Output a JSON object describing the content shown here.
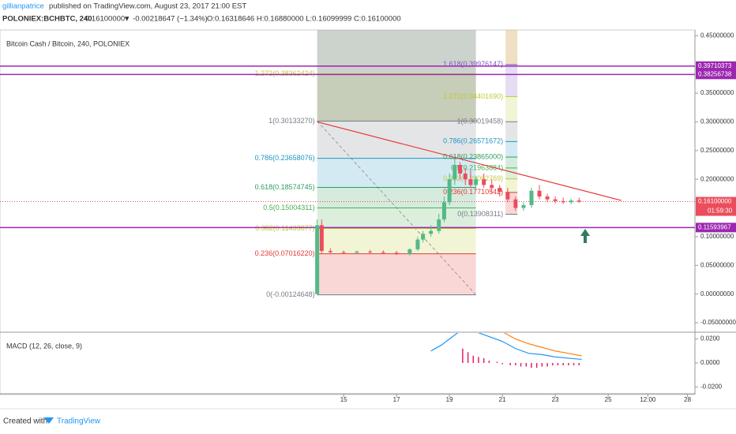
{
  "header": {
    "user": "gillianpatrice",
    "published": "published on TradingView.com, August 23, 2017 21:00 EST",
    "symbol": "POLONIEX:BCHBTC, 240",
    "last": "0.16100000",
    "change": "▼ -0.00218647 (−1.34%)",
    "ohlc": "O:0.16318646 H:0.16880000 L:0.16099999 C:0.16100000"
  },
  "chart_data": [
    {
      "type": "candlestick",
      "title": "Bitcoin Cash / Bitcoin, 240, POLONIEX",
      "up_color": "#53b987",
      "down_color": "#eb4d5c",
      "x": [
        14.0,
        14.17,
        14.5,
        15.0,
        15.5,
        16.0,
        16.5,
        17.0,
        17.5,
        17.8,
        18.0,
        18.3,
        18.6,
        18.8,
        19.0,
        19.2,
        19.4,
        19.6,
        19.8,
        20.0,
        20.3,
        20.6,
        20.9,
        21.2,
        21.5,
        21.8,
        22.1,
        22.4,
        22.7,
        23.0,
        23.3,
        23.6,
        23.9
      ],
      "open": [
        0.0,
        0.12,
        0.075,
        0.073,
        0.072,
        0.074,
        0.073,
        0.072,
        0.07,
        0.078,
        0.095,
        0.105,
        0.11,
        0.13,
        0.16,
        0.2,
        0.225,
        0.21,
        0.2,
        0.19,
        0.2,
        0.19,
        0.185,
        0.178,
        0.165,
        0.15,
        0.155,
        0.18,
        0.17,
        0.165,
        0.162,
        0.16,
        0.163
      ],
      "high": [
        0.13,
        0.13,
        0.08,
        0.076,
        0.076,
        0.077,
        0.076,
        0.075,
        0.08,
        0.1,
        0.11,
        0.12,
        0.14,
        0.17,
        0.21,
        0.235,
        0.23,
        0.22,
        0.215,
        0.205,
        0.21,
        0.2,
        0.19,
        0.185,
        0.17,
        0.16,
        0.185,
        0.19,
        0.175,
        0.17,
        0.168,
        0.166,
        0.168
      ],
      "low": [
        -0.001,
        0.07,
        0.07,
        0.07,
        0.07,
        0.071,
        0.07,
        0.068,
        0.067,
        0.075,
        0.09,
        0.1,
        0.105,
        0.125,
        0.155,
        0.19,
        0.2,
        0.19,
        0.185,
        0.18,
        0.185,
        0.175,
        0.17,
        0.16,
        0.145,
        0.145,
        0.15,
        0.165,
        0.16,
        0.158,
        0.157,
        0.156,
        0.159
      ],
      "close": [
        0.12,
        0.075,
        0.073,
        0.072,
        0.074,
        0.073,
        0.072,
        0.07,
        0.078,
        0.095,
        0.105,
        0.11,
        0.13,
        0.16,
        0.2,
        0.225,
        0.21,
        0.2,
        0.19,
        0.2,
        0.19,
        0.185,
        0.178,
        0.165,
        0.15,
        0.155,
        0.18,
        0.17,
        0.165,
        0.162,
        0.16,
        0.163,
        0.161
      ],
      "xlim": [
        2.01,
        28.28
      ],
      "xticks": [
        15,
        17,
        19,
        21,
        23,
        25,
        {
          "value": 26.5,
          "label": "12:00"
        },
        28
      ],
      "ylim": [
        -0.065,
        0.46
      ],
      "yticks": [
        {
          "value": 0.45,
          "label": "0.45000000"
        },
        {
          "value": 0.35,
          "label": "0.35000000"
        },
        {
          "value": 0.3,
          "label": "0.30000000"
        },
        {
          "value": 0.25,
          "label": "0.25000000"
        },
        {
          "value": 0.2,
          "label": "0.20000000"
        },
        {
          "value": 0.1,
          "label": "0.10000000"
        },
        {
          "value": 0.05,
          "label": "0.05000000"
        },
        {
          "value": 0,
          "label": "0.00000000"
        },
        {
          "value": -0.05,
          "label": "-0.05000000"
        }
      ],
      "horizontal_lines": [
        {
          "value": 0.39710373,
          "label": "0.39710373"
        },
        {
          "value": 0.38256738,
          "label": "0.38256738"
        },
        {
          "value": 0.11593967,
          "label": "0.11593967"
        }
      ],
      "last_price": {
        "value": 0.161,
        "label": "0.16100000",
        "countdown": "01:59:30"
      },
      "trend_line": {
        "x": [
          14.0,
          25.5
        ],
        "y": [
          0.3,
          0.163
        ]
      },
      "fibs": [
        {
          "x_range": [
            14.0,
            20.0
          ],
          "levels": [
            {
              "value": -0.00124648,
              "label": "0(-0.00124648)",
              "color": "#787b86"
            },
            {
              "value": 0.0701622,
              "label": "0.236(0.07016220)",
              "color": "#e53935"
            },
            {
              "value": 0.11433877,
              "label": "0.382(0.11433877)",
              "color": "#c0ca33"
            },
            {
              "value": 0.15004311,
              "label": "0.5(0.15004311)",
              "color": "#4caf50"
            },
            {
              "value": 0.18574745,
              "label": "0.618(0.18574745)",
              "color": "#2e9d5b"
            },
            {
              "value": 0.23658076,
              "label": "0.786(0.23658076)",
              "color": "#2196c3"
            },
            {
              "value": 0.3013327,
              "label": "1(0.30133270)",
              "color": "#787b86"
            },
            {
              "value": 0.38362424,
              "label": "1.272(0.38362424)",
              "color": "#c0ca33"
            }
          ]
        },
        {
          "x_range": [
            21.12,
            21.57
          ],
          "levels": [
            {
              "value": 0.13908311,
              "label": "0(0.13908311)",
              "color": "#787b86"
            },
            {
              "value": 0.17710542,
              "label": "0.236(0.17710542)",
              "color": "#e53935"
            },
            {
              "value": 0.20062769,
              "label": "0.382(0.20062769)",
              "color": "#c0ca33"
            },
            {
              "value": 0.21963884,
              "label": "0.5(0.21963884)",
              "color": "#4caf50"
            },
            {
              "value": 0.23865,
              "label": "0.618(0.23865000)",
              "color": "#2e9d5b"
            },
            {
              "value": 0.26571672,
              "label": "0.786(0.26571672)",
              "color": "#2196c3"
            },
            {
              "value": 0.30019458,
              "label": "1(0.30019458)",
              "color": "#787b86"
            },
            {
              "value": 0.3440169,
              "label": "1.272(0.34401690)",
              "color": "#c0ca33"
            },
            {
              "value": 0.39976147,
              "label": "1.618(0.39976147)",
              "color": "#7e57c2"
            }
          ]
        }
      ]
    },
    {
      "type": "macd",
      "title": "MACD (12, 26, close, 9)",
      "x": [
        18.3,
        18.7,
        19.0,
        19.3,
        19.6,
        20.0,
        20.5,
        21.0,
        21.5,
        22.0,
        22.5,
        23.0,
        23.5,
        24.0
      ],
      "series": [
        {
          "name": "MACD",
          "color": "#2196f3",
          "values": [
            0.01,
            0.015,
            0.02,
            0.025,
            0.028,
            0.026,
            0.022,
            0.018,
            0.012,
            0.008,
            0.007,
            0.005,
            0.004,
            0.003
          ]
        },
        {
          "name": "Signal",
          "color": "#ff7f0e",
          "values": [
            null,
            null,
            null,
            null,
            0.03,
            0.031,
            0.029,
            0.026,
            0.02,
            0.016,
            0.013,
            0.01,
            0.008,
            0.006
          ]
        }
      ],
      "histogram": {
        "color": "#e91e63",
        "x": [
          19.5,
          19.7,
          19.9,
          20.1,
          20.3,
          20.5,
          20.8,
          21.0,
          21.3,
          21.5,
          21.7,
          21.9,
          22.1,
          22.3,
          22.5,
          22.7,
          22.9,
          23.1,
          23.3,
          23.5,
          23.7,
          23.9
        ],
        "values": [
          0.012,
          0.009,
          0.006,
          0.005,
          0.004,
          0.002,
          0.001,
          -0.001,
          -0.002,
          -0.002,
          -0.003,
          -0.003,
          -0.004,
          -0.004,
          -0.003,
          -0.003,
          -0.002,
          -0.002,
          -0.002,
          -0.002,
          -0.002,
          -0.002
        ]
      },
      "ylim": [
        -0.025,
        0.025
      ],
      "yticks": [
        {
          "value": 0.02,
          "label": "0.0200"
        },
        {
          "value": 0,
          "label": "0.0000"
        },
        {
          "value": -0.02,
          "label": "-0.0200"
        }
      ]
    }
  ],
  "footer": {
    "created": "Created with",
    "brand": "TradingView"
  }
}
